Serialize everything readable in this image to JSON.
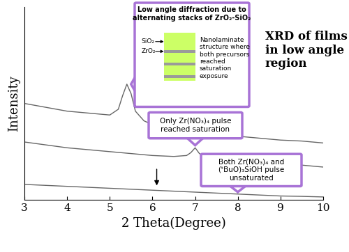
{
  "chart_data": {
    "type": "line",
    "xlabel": "2 Theta(Degree)",
    "ylabel": "Intensity",
    "side_text": "XRD of films in low angle region",
    "xlim": [
      3,
      10
    ],
    "xticks": [
      3,
      4,
      5,
      6,
      7,
      8,
      9,
      10
    ],
    "ylim": [
      0,
      100
    ],
    "yticks": [],
    "tick_labels": "x",
    "grid": false,
    "color": "#666666",
    "series": [
      {
        "x": [
          3,
          3.5,
          4,
          4.5,
          5,
          5.2,
          5.3,
          5.4,
          5.5,
          5.6,
          5.8,
          6,
          6.5,
          7,
          7.5,
          8,
          8.5,
          9,
          9.5,
          10
        ],
        "values": [
          50,
          48,
          46,
          45,
          44,
          47,
          54,
          60,
          55,
          46,
          41,
          39,
          37,
          35.5,
          34.5,
          33,
          32,
          31,
          30.5,
          29.5
        ],
        "callout": {
          "title": "Low angle diffraction due to alternating stacks of ZrO₂-SiO₂",
          "layer_labels": [
            "SiO₂",
            "ZrO₂"
          ],
          "text": "Nanolaminate structure where both precursors reached saturation exposure"
        }
      },
      {
        "x": [
          3,
          3.5,
          4,
          4.5,
          5,
          5.5,
          6,
          6.5,
          6.8,
          6.9,
          7.0,
          7.1,
          7.3,
          7.5,
          8,
          8.5,
          9,
          9.5,
          10
        ],
        "values": [
          30,
          28.5,
          27,
          26,
          25,
          24,
          23,
          22.5,
          23,
          24.5,
          27,
          24,
          21.5,
          21,
          20,
          19.5,
          18.5,
          18,
          17
        ],
        "callout": {
          "text": "Only Zr(NO₃)₄ pulse reached saturation"
        }
      },
      {
        "x": [
          3,
          3.5,
          4,
          4.5,
          5,
          5.5,
          6,
          6.5,
          7,
          7.5,
          8,
          8.5,
          9,
          9.5,
          10
        ],
        "values": [
          8,
          7.5,
          7,
          6.5,
          6,
          5.5,
          5,
          4.5,
          4,
          3.5,
          3,
          2.5,
          2,
          1.8,
          1.5
        ],
        "arrow_x": 6.1,
        "callout": {
          "text": "Both Zr(NO₃)₄ and (ᵗBuO)₃SiOH pulse unsaturated"
        }
      }
    ]
  }
}
